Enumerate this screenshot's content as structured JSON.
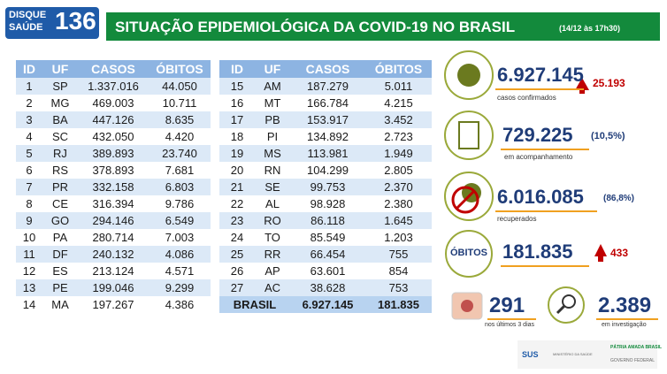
{
  "header": {
    "logo_top": "DISQUE",
    "logo_bottom": "SAÚDE",
    "logo_number": "136",
    "title": "SITUAÇÃO EPIDEMIOLÓGICA DA COVID-19 NO BRASIL",
    "date": "(14/12 às 17h30)"
  },
  "tables": [
    {
      "columns": [
        "ID",
        "UF",
        "CASOS",
        "ÓBITOS"
      ],
      "rows": [
        [
          "1",
          "SP",
          "1.337.016",
          "44.050"
        ],
        [
          "2",
          "MG",
          "469.003",
          "10.711"
        ],
        [
          "3",
          "BA",
          "447.126",
          "8.635"
        ],
        [
          "4",
          "SC",
          "432.050",
          "4.420"
        ],
        [
          "5",
          "RJ",
          "389.893",
          "23.740"
        ],
        [
          "6",
          "RS",
          "378.893",
          "7.681"
        ],
        [
          "7",
          "PR",
          "332.158",
          "6.803"
        ],
        [
          "8",
          "CE",
          "316.394",
          "9.786"
        ],
        [
          "9",
          "GO",
          "294.146",
          "6.549"
        ],
        [
          "10",
          "PA",
          "280.714",
          "7.003"
        ],
        [
          "11",
          "DF",
          "240.132",
          "4.086"
        ],
        [
          "12",
          "ES",
          "213.124",
          "4.571"
        ],
        [
          "13",
          "PE",
          "199.046",
          "9.299"
        ],
        [
          "14",
          "MA",
          "197.267",
          "4.386"
        ]
      ]
    },
    {
      "columns": [
        "ID",
        "UF",
        "CASOS",
        "ÓBITOS"
      ],
      "rows": [
        [
          "15",
          "AM",
          "187.279",
          "5.011"
        ],
        [
          "16",
          "MT",
          "166.784",
          "4.215"
        ],
        [
          "17",
          "PB",
          "153.917",
          "3.452"
        ],
        [
          "18",
          "PI",
          "134.892",
          "2.723"
        ],
        [
          "19",
          "MS",
          "113.981",
          "1.949"
        ],
        [
          "20",
          "RN",
          "104.299",
          "2.805"
        ],
        [
          "21",
          "SE",
          "99.753",
          "2.370"
        ],
        [
          "22",
          "AL",
          "98.928",
          "2.380"
        ],
        [
          "23",
          "RO",
          "86.118",
          "1.645"
        ],
        [
          "24",
          "TO",
          "85.549",
          "1.203"
        ],
        [
          "25",
          "RR",
          "66.454",
          "755"
        ],
        [
          "26",
          "AP",
          "63.601",
          "854"
        ],
        [
          "27",
          "AC",
          "38.628",
          "753"
        ]
      ],
      "total": [
        "BRASIL",
        "6.927.145",
        "181.835"
      ]
    }
  ],
  "stats": {
    "cases": {
      "value": "6.927.145",
      "new": "25.193",
      "label": "casos confirmados"
    },
    "monitoring": {
      "value": "729.225",
      "share": "(10,5%)",
      "label": "em acompanhamento"
    },
    "recovered": {
      "value": "6.016.085",
      "share": "(86,8%)",
      "label": "recuperados"
    },
    "deaths": {
      "label": "ÓBITOS",
      "value": "181.835",
      "new": "433"
    },
    "recent": {
      "value": "291",
      "label": "nos últimos 3 dias"
    },
    "investigation": {
      "value": "2.389",
      "label": "em investigação"
    }
  },
  "footer": {
    "sus": "SUS",
    "ministry": "MINISTÉRIO DA SAÚDE",
    "slogan": "PÁTRIA AMADA BRASIL",
    "government": "GOVERNO FEDERAL"
  }
}
